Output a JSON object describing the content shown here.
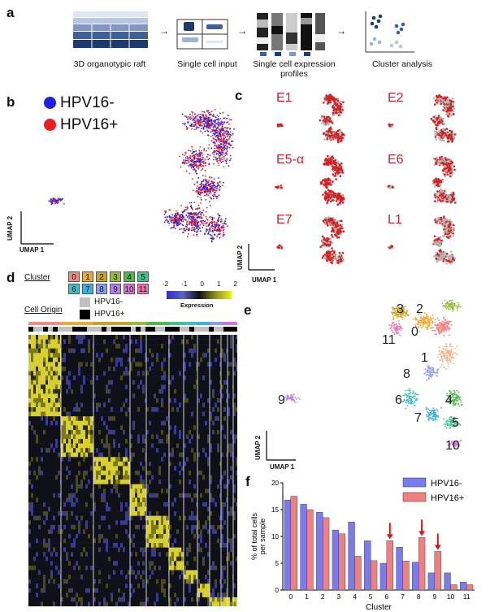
{
  "panels": {
    "a": {
      "letter": "a",
      "steps": [
        "3D organotypic raft",
        "Single cell input",
        "Single cell expression profiles",
        "Cluster analysis"
      ]
    },
    "b": {
      "letter": "b",
      "legend": [
        {
          "label": "HPV16-",
          "color": "#1f1fe6"
        },
        {
          "label": "HPV16+",
          "color": "#e61f1f"
        }
      ],
      "umap1": "UMAP 1",
      "umap2": "UMAP 2"
    },
    "c": {
      "letter": "c",
      "genes": [
        "E1",
        "E2",
        "E5-α",
        "E6",
        "E7",
        "L1"
      ],
      "umap1": "UMAP 1",
      "umap2": "UMAP 2"
    },
    "d": {
      "letter": "d",
      "cluster_title": "Cluster",
      "cell_origin_title": "Cell Origin",
      "origin_labels": [
        "HPV16-",
        "HPV16+"
      ],
      "expression_title": "Expression",
      "scale_ticks": [
        "-2",
        "-1",
        "0",
        "1",
        "2"
      ],
      "cluster_ids": [
        "0",
        "1",
        "2",
        "3",
        "4",
        "5",
        "6",
        "7",
        "8",
        "9",
        "10",
        "11"
      ],
      "cluster_colors": [
        "#f28b82",
        "#f0a830",
        "#c9a227",
        "#9bbb3b",
        "#4cbb4c",
        "#3fc28c",
        "#3fbfbf",
        "#3ab0e0",
        "#8a9bf0",
        "#b87ef0",
        "#e070e0",
        "#f070b0"
      ]
    },
    "e": {
      "letter": "e",
      "umap1": "UMAP 1",
      "umap2": "UMAP 2",
      "labels": [
        "3",
        "2",
        "11",
        "0",
        "1",
        "8",
        "9",
        "6",
        "4",
        "7",
        "5",
        "10"
      ]
    },
    "f": {
      "letter": "f"
    }
  },
  "chart_data": {
    "type": "bar",
    "categories": [
      "0",
      "1",
      "2",
      "3",
      "4",
      "5",
      "6",
      "7",
      "8",
      "9",
      "10",
      "11"
    ],
    "series": [
      {
        "name": "HPV16-",
        "color": "#7b7bf0",
        "values": [
          16.8,
          16.0,
          14.5,
          11.2,
          12.7,
          9.2,
          5.0,
          8.0,
          5.2,
          3.2,
          3.2,
          1.5
        ]
      },
      {
        "name": "HPV16+",
        "color": "#f08080",
        "values": [
          17.5,
          15.0,
          13.5,
          10.5,
          6.3,
          5.5,
          9.2,
          5.4,
          9.8,
          7.2,
          1.0,
          1.0
        ]
      }
    ],
    "xlabel": "Cluster",
    "ylabel": "% of total cells per sample",
    "ylim": [
      0,
      20
    ],
    "yticks": [
      "0",
      "5",
      "10",
      "15",
      "20"
    ],
    "legend_position": "top-right",
    "annotations": "red arrows above clusters 6, 8, 9"
  }
}
